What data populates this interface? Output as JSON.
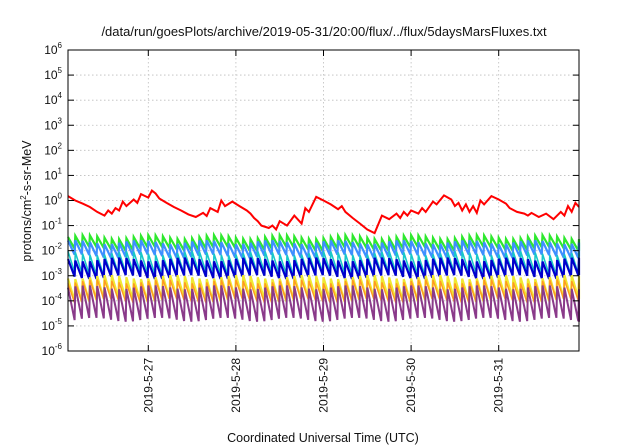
{
  "chart_data": {
    "type": "line",
    "title": "/data/run/goesPlots/archive/2019-05-31/20:00/flux/../flux/5daysMarsFluxes.txt",
    "xlabel": "Coordinated Universal Time (UTC)",
    "ylabel_parts": [
      "protons/cm",
      "2",
      "-s-sr-MeV"
    ],
    "y_scale": "log",
    "ylim": [
      1e-06,
      1000000.0
    ],
    "y_ticks": [
      {
        "base": "10",
        "exp": "-6",
        "value": -6
      },
      {
        "base": "10",
        "exp": "-5",
        "value": -5
      },
      {
        "base": "10",
        "exp": "-4",
        "value": -4
      },
      {
        "base": "10",
        "exp": "-3",
        "value": -3
      },
      {
        "base": "10",
        "exp": "-2",
        "value": -2
      },
      {
        "base": "10",
        "exp": "-1",
        "value": -1
      },
      {
        "base": "10",
        "exp": "0",
        "value": 0
      },
      {
        "base": "10",
        "exp": "1",
        "value": 1
      },
      {
        "base": "10",
        "exp": "2",
        "value": 2
      },
      {
        "base": "10",
        "exp": "3",
        "value": 3
      },
      {
        "base": "10",
        "exp": "4",
        "value": 4
      },
      {
        "base": "10",
        "exp": "5",
        "value": 5
      },
      {
        "base": "10",
        "exp": "6",
        "value": 6
      }
    ],
    "xlim": [
      "2019-05-26T02:00",
      "2019-05-31T22:00"
    ],
    "x_ticks": [
      {
        "label": "2019-5-27",
        "date": "2019-05-27T00:00"
      },
      {
        "label": "2019-5-28",
        "date": "2019-05-28T00:00"
      },
      {
        "label": "2019-5-29",
        "date": "2019-05-29T00:00"
      },
      {
        "label": "2019-5-30",
        "date": "2019-05-30T00:00"
      },
      {
        "label": "2019-5-31",
        "date": "2019-05-31T00:00"
      }
    ],
    "grid": true,
    "series": [
      {
        "color": "#ff0000",
        "x": [
          "2019-05-26T02:00",
          "2019-05-26T04:00",
          "2019-05-26T06:00",
          "2019-05-26T08:00",
          "2019-05-26T10:00",
          "2019-05-26T12:00",
          "2019-05-26T13:00",
          "2019-05-26T14:00",
          "2019-05-26T15:00",
          "2019-05-26T16:00",
          "2019-05-26T17:00",
          "2019-05-26T18:00",
          "2019-05-26T20:00",
          "2019-05-26T21:00",
          "2019-05-26T22:00",
          "2019-05-27T00:00",
          "2019-05-27T01:00",
          "2019-05-27T02:00",
          "2019-05-27T03:00",
          "2019-05-27T05:00",
          "2019-05-27T07:00",
          "2019-05-27T09:00",
          "2019-05-27T11:00",
          "2019-05-27T13:00",
          "2019-05-27T15:00",
          "2019-05-27T16:00",
          "2019-05-27T17:00",
          "2019-05-27T19:00",
          "2019-05-27T20:00",
          "2019-05-27T21:00",
          "2019-05-27T23:00",
          "2019-05-28T01:00",
          "2019-05-28T03:00",
          "2019-05-28T04:00",
          "2019-05-28T05:00",
          "2019-05-28T06:00",
          "2019-05-28T07:00",
          "2019-05-28T09:00",
          "2019-05-28T10:00",
          "2019-05-28T11:00",
          "2019-05-28T12:00",
          "2019-05-28T14:00",
          "2019-05-28T16:00",
          "2019-05-28T18:00",
          "2019-05-28T19:00",
          "2019-05-28T20:00",
          "2019-05-28T22:00",
          "2019-05-29T00:00",
          "2019-05-29T02:00",
          "2019-05-29T04:00",
          "2019-05-29T05:00",
          "2019-05-29T06:00",
          "2019-05-29T08:00",
          "2019-05-29T10:00",
          "2019-05-29T12:00",
          "2019-05-29T14:00",
          "2019-05-29T16:00",
          "2019-05-29T18:00",
          "2019-05-29T20:00",
          "2019-05-29T21:00",
          "2019-05-29T22:00",
          "2019-05-29T23:00",
          "2019-05-30T00:00",
          "2019-05-30T02:00",
          "2019-05-30T03:00",
          "2019-05-30T04:00",
          "2019-05-30T06:00",
          "2019-05-30T07:00",
          "2019-05-30T09:00",
          "2019-05-30T11:00",
          "2019-05-30T12:00",
          "2019-05-30T13:00",
          "2019-05-30T14:00",
          "2019-05-30T15:00",
          "2019-05-30T16:00",
          "2019-05-30T17:00",
          "2019-05-30T18:00",
          "2019-05-30T19:00",
          "2019-05-30T20:00",
          "2019-05-30T22:00",
          "2019-05-31T00:00",
          "2019-05-31T02:00",
          "2019-05-31T03:00",
          "2019-05-31T05:00",
          "2019-05-31T07:00",
          "2019-05-31T08:00",
          "2019-05-31T09:00",
          "2019-05-31T11:00",
          "2019-05-31T13:00",
          "2019-05-31T15:00",
          "2019-05-31T17:00",
          "2019-05-31T18:00",
          "2019-05-31T19:00",
          "2019-05-31T20:00",
          "2019-05-31T21:00",
          "2019-05-31T22:00"
        ],
        "y": [
          1.5,
          1.0,
          0.75,
          0.55,
          0.35,
          0.25,
          0.4,
          0.3,
          0.5,
          0.4,
          0.9,
          0.6,
          1.1,
          0.8,
          1.8,
          1.3,
          2.5,
          1.9,
          1.2,
          0.8,
          0.55,
          0.4,
          0.28,
          0.22,
          0.32,
          0.24,
          0.5,
          0.35,
          1.0,
          0.6,
          0.9,
          0.6,
          0.4,
          0.3,
          0.2,
          0.15,
          0.1,
          0.08,
          0.1,
          0.07,
          0.15,
          0.1,
          0.25,
          0.12,
          0.5,
          0.35,
          1.4,
          1.0,
          0.7,
          0.45,
          0.6,
          0.35,
          0.2,
          0.12,
          0.07,
          0.05,
          0.25,
          0.18,
          0.3,
          0.2,
          0.35,
          0.25,
          0.4,
          0.3,
          0.5,
          0.35,
          0.9,
          0.7,
          1.6,
          1.1,
          0.6,
          0.8,
          0.4,
          0.7,
          0.35,
          0.6,
          0.32,
          1.0,
          0.7,
          1.5,
          1.1,
          0.75,
          0.5,
          0.35,
          0.3,
          0.25,
          0.32,
          0.22,
          0.3,
          0.18,
          0.35,
          0.25,
          0.6,
          0.35,
          0.8,
          0.55
        ]
      }
    ]
  }
}
